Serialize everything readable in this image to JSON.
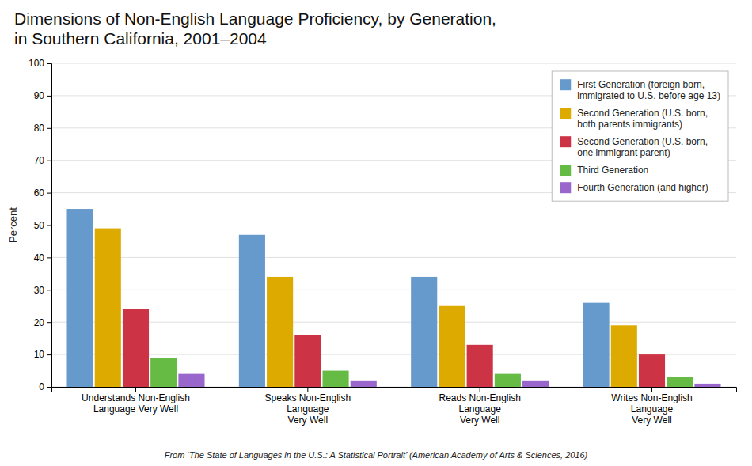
{
  "chart_data": {
    "type": "bar",
    "title": "Dimensions of Non-English Language Proficiency, by Generation,\nin Southern California, 2001–2004",
    "categories": [
      "Understands Non-English\nLanguage Very Well",
      "Speaks Non-English\nLanguage\nVery Well",
      "Reads Non-English\nLanguage\nVery Well",
      "Writes Non-English\nLanguage\nVery Well"
    ],
    "series": [
      {
        "name": "First Generation (foreign born,\nimmigrated to U.S. before age 13)",
        "color": "#6699CC",
        "values": [
          55,
          47,
          34,
          26
        ]
      },
      {
        "name": "Second Generation (U.S. born,\nboth parents immigrants)",
        "color": "#DDAA00",
        "values": [
          49,
          34,
          25,
          19
        ]
      },
      {
        "name": "Second Generation (U.S. born,\none immigrant parent)",
        "color": "#CC3344",
        "values": [
          24,
          16,
          13,
          10
        ]
      },
      {
        "name": "Third Generation",
        "color": "#66BB44",
        "values": [
          9,
          5,
          4,
          3
        ]
      },
      {
        "name": "Fourth Generation (and higher)",
        "color": "#9966CC",
        "values": [
          4,
          2,
          2,
          1
        ]
      }
    ],
    "ylabel": "Percent",
    "ylim": [
      0,
      100
    ],
    "yticks": [
      0,
      10,
      20,
      30,
      40,
      50,
      60,
      70,
      80,
      90,
      100
    ],
    "grid": true,
    "legend": "upper right",
    "annotations": [
      "From ‘The State of Languages in the U.S.: A Statistical Portrait’ (American Academy of Arts & Sciences, 2016)"
    ]
  }
}
